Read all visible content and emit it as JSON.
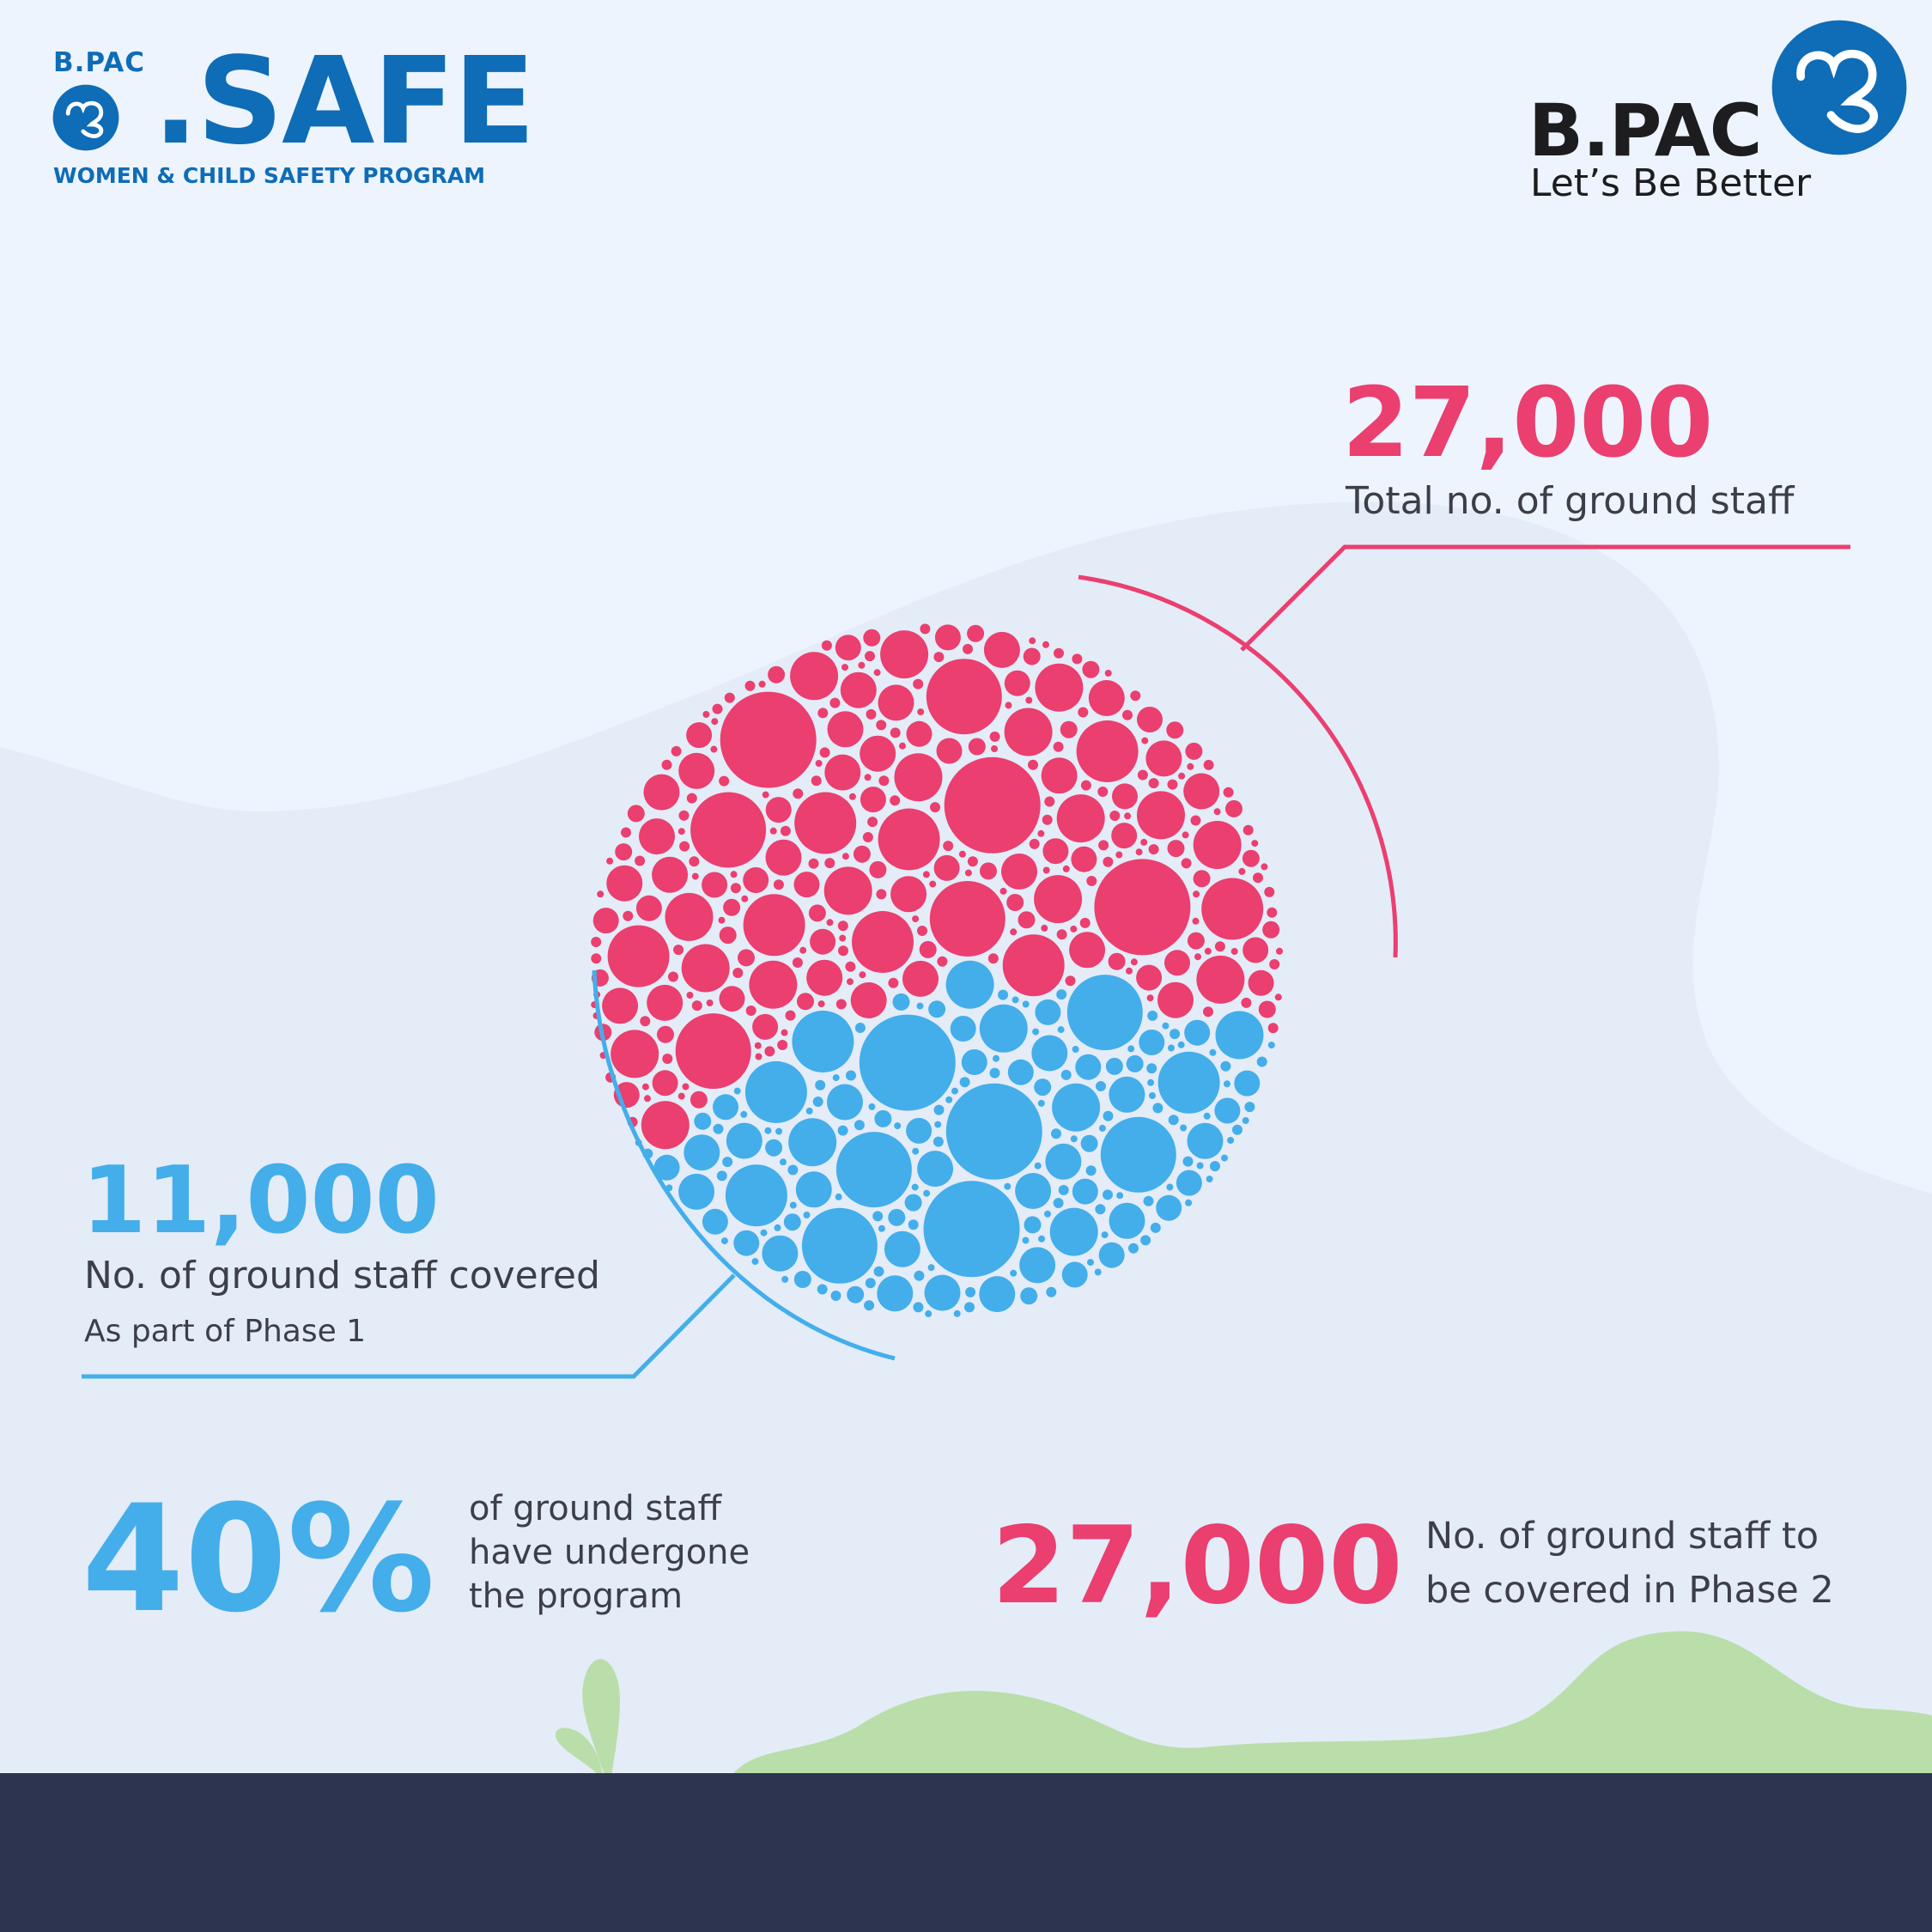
{
  "colors": {
    "pink": "#ea3f6f",
    "blue": "#43aeea",
    "brand_blue": "#0f6cb6",
    "dark": "#2c3450",
    "green": "#b9dea9"
  },
  "logo_left": {
    "brand": "B.PAC",
    "name": ".SAFE",
    "tagline": "WOMEN & CHILD SAFETY PROGRAM",
    "icon": "bpac-mark-icon"
  },
  "logo_right": {
    "brand": "B.PAC",
    "tagline": "Let’s Be Better",
    "icon": "bpac-mark-icon"
  },
  "stats": {
    "total": {
      "value": "27,000",
      "label": "Total no. of ground staff"
    },
    "covered": {
      "value": "11,000",
      "label": "No. of ground staff covered",
      "sublabel": "As part of Phase 1"
    },
    "percent": {
      "value": "40%",
      "line1": "of ground staff",
      "line2": "have undergone",
      "line3": "the program"
    },
    "phase2": {
      "value": "27,000",
      "line1": "No. of ground staff to",
      "line2": "be covered in Phase 2"
    }
  },
  "chart_data": {
    "type": "bubble-cluster",
    "series": [
      {
        "value": 27000,
        "label": "Total no. of ground staff",
        "color": "#ea3f6f"
      },
      {
        "value": 11000,
        "label": "No. of ground staff covered",
        "color": "#43aeea"
      }
    ],
    "covered_fraction": 0.4
  }
}
